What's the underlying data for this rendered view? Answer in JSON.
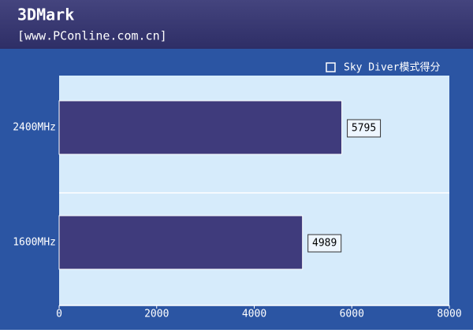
{
  "chart_data": {
    "type": "bar",
    "orientation": "horizontal",
    "title": "3DMark",
    "subtitle": "[www.PConline.com.cn]",
    "categories": [
      "2400MHz",
      "1600MHz"
    ],
    "series": [
      {
        "name": "Sky Diver模式得分",
        "color": "#3f3b7c",
        "values": [
          5795,
          4989
        ]
      }
    ],
    "xlim": [
      0,
      8000
    ],
    "xticks": [
      0,
      2000,
      4000,
      6000,
      8000
    ],
    "legend": "top-right"
  }
}
